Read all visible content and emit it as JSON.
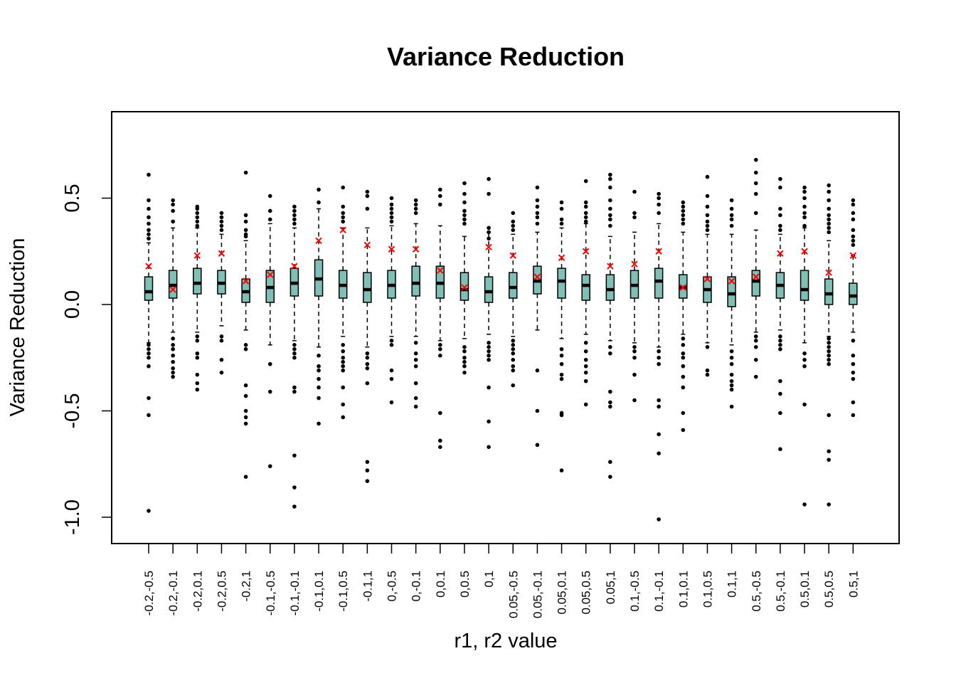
{
  "chart_data": {
    "type": "box",
    "title": "Variance Reduction",
    "xlabel": "r1, r2 value",
    "ylabel": "Variance Reduction",
    "ylim": [
      -1.12,
      0.92
    ],
    "yticks": [
      -1.0,
      -0.5,
      0.0,
      0.5
    ],
    "ytick_labels": [
      "-1.0",
      "-0.5",
      "0.0",
      "0.5"
    ],
    "box_color": "#7fbfb5",
    "mean_marker_color": "#ff0000",
    "grid": false,
    "categories": [
      "-0.2,-0.5",
      "-0.2,-0.1",
      "-0.2,0.1",
      "-0.2,0.5",
      "-0.2,1",
      "-0.1,-0.5",
      "-0.1,-0.1",
      "-0.1,0.1",
      "-0.1,0.5",
      "-0.1,1",
      "0,-0.5",
      "0,-0.1",
      "0,0.1",
      "0,0.5",
      "0,1",
      "0.05,-0.5",
      "0.05,-0.1",
      "0.05,0.1",
      "0.05,0.5",
      "0.05,1",
      "0.1,-0.5",
      "0.1,-0.1",
      "0.1,0.1",
      "0.1,0.5",
      "0.1,1",
      "0.5,-0.5",
      "0.5,-0.1",
      "0.5,0.1",
      "0.5,0.5",
      "0.5,1"
    ],
    "boxes": [
      {
        "median": 0.06,
        "q1": 0.02,
        "q3": 0.13,
        "wlow": -0.18,
        "whigh": 0.29,
        "mean": 0.18,
        "outliers": [
          0.61,
          0.49,
          0.45,
          0.41,
          0.38,
          0.35,
          0.33,
          0.31,
          -0.19,
          -0.21,
          -0.23,
          -0.25,
          -0.29,
          -0.44,
          -0.52,
          -0.97
        ]
      },
      {
        "median": 0.09,
        "q1": 0.03,
        "q3": 0.16,
        "wlow": -0.13,
        "whigh": 0.36,
        "mean": 0.07,
        "outliers": [
          0.49,
          0.47,
          0.44,
          0.39,
          -0.16,
          -0.19,
          -0.21,
          -0.24,
          -0.27,
          -0.3,
          -0.32,
          -0.34
        ]
      },
      {
        "median": 0.1,
        "q1": 0.05,
        "q3": 0.17,
        "wlow": -0.13,
        "whigh": 0.36,
        "mean": 0.23,
        "outliers": [
          0.46,
          0.45,
          0.43,
          0.41,
          0.39,
          0.37,
          -0.15,
          -0.17,
          -0.23,
          -0.25,
          -0.33,
          -0.37,
          -0.4
        ]
      },
      {
        "median": 0.1,
        "q1": 0.05,
        "q3": 0.16,
        "wlow": -0.1,
        "whigh": 0.33,
        "mean": 0.24,
        "outliers": [
          0.43,
          0.41,
          0.39,
          0.37,
          0.35,
          -0.15,
          -0.17,
          -0.26,
          -0.32
        ]
      },
      {
        "median": 0.06,
        "q1": 0.01,
        "q3": 0.12,
        "wlow": -0.12,
        "whigh": 0.3,
        "mean": 0.11,
        "outliers": [
          0.62,
          0.42,
          0.39,
          0.35,
          0.33,
          0.32,
          -0.19,
          -0.21,
          -0.38,
          -0.43,
          -0.5,
          -0.53,
          -0.56,
          -0.81
        ]
      },
      {
        "median": 0.08,
        "q1": 0.01,
        "q3": 0.16,
        "wlow": -0.19,
        "whigh": 0.38,
        "mean": 0.14,
        "outliers": [
          0.51,
          0.44,
          0.4,
          -0.28,
          -0.41,
          -0.76
        ]
      },
      {
        "median": 0.1,
        "q1": 0.04,
        "q3": 0.17,
        "wlow": -0.17,
        "whigh": 0.36,
        "mean": 0.18,
        "outliers": [
          0.46,
          0.44,
          0.42,
          0.4,
          0.38,
          -0.19,
          -0.21,
          -0.23,
          -0.25,
          -0.39,
          -0.41,
          -0.71,
          -0.86,
          -0.95
        ]
      },
      {
        "median": 0.12,
        "q1": 0.04,
        "q3": 0.21,
        "wlow": -0.2,
        "whigh": 0.45,
        "mean": 0.3,
        "outliers": [
          0.54,
          0.48,
          -0.24,
          -0.29,
          -0.31,
          -0.35,
          -0.39,
          -0.44,
          -0.56
        ]
      },
      {
        "median": 0.09,
        "q1": 0.03,
        "q3": 0.16,
        "wlow": -0.15,
        "whigh": 0.36,
        "mean": 0.35,
        "outliers": [
          0.55,
          0.46,
          0.43,
          0.41,
          0.39,
          -0.19,
          -0.22,
          -0.25,
          -0.27,
          -0.29,
          -0.31,
          -0.39,
          -0.47,
          -0.53
        ]
      },
      {
        "median": 0.07,
        "q1": 0.01,
        "q3": 0.15,
        "wlow": -0.2,
        "whigh": 0.36,
        "mean": 0.28,
        "outliers": [
          0.53,
          0.51,
          0.45,
          -0.23,
          -0.25,
          -0.28,
          -0.3,
          -0.37,
          -0.74,
          -0.78,
          -0.83
        ]
      },
      {
        "median": 0.09,
        "q1": 0.03,
        "q3": 0.16,
        "wlow": -0.15,
        "whigh": 0.37,
        "mean": 0.26,
        "outliers": [
          0.5,
          0.47,
          0.45,
          0.43,
          0.41,
          0.39,
          -0.17,
          -0.19,
          -0.31,
          -0.35,
          -0.46
        ]
      },
      {
        "median": 0.1,
        "q1": 0.04,
        "q3": 0.18,
        "wlow": -0.15,
        "whigh": 0.38,
        "mean": 0.26,
        "outliers": [
          0.49,
          0.47,
          0.45,
          0.43,
          -0.18,
          -0.23,
          -0.26,
          -0.29,
          -0.37,
          -0.44,
          -0.48
        ]
      },
      {
        "median": 0.1,
        "q1": 0.03,
        "q3": 0.18,
        "wlow": -0.17,
        "whigh": 0.37,
        "mean": 0.16,
        "outliers": [
          0.54,
          0.51,
          0.47,
          -0.19,
          -0.21,
          -0.24,
          -0.51,
          -0.64,
          -0.67
        ]
      },
      {
        "median": 0.07,
        "q1": 0.02,
        "q3": 0.15,
        "wlow": -0.16,
        "whigh": 0.32,
        "mean": 0.08,
        "outliers": [
          0.57,
          0.52,
          0.48,
          0.44,
          0.42,
          0.4,
          0.38,
          -0.2,
          -0.22,
          -0.25,
          -0.27,
          -0.29,
          -0.32
        ]
      },
      {
        "median": 0.06,
        "q1": 0.01,
        "q3": 0.13,
        "wlow": -0.14,
        "whigh": 0.34,
        "mean": 0.27,
        "outliers": [
          0.59,
          0.52,
          0.36,
          0.34,
          0.31,
          -0.18,
          -0.2,
          -0.22,
          -0.24,
          -0.26,
          -0.39,
          -0.55,
          -0.67
        ]
      },
      {
        "median": 0.08,
        "q1": 0.03,
        "q3": 0.15,
        "wlow": -0.15,
        "whigh": 0.33,
        "mean": 0.23,
        "outliers": [
          0.43,
          0.39,
          0.37,
          0.35,
          -0.17,
          -0.19,
          -0.21,
          -0.23,
          -0.26,
          -0.29,
          -0.31,
          -0.38
        ]
      },
      {
        "median": 0.11,
        "q1": 0.05,
        "q3": 0.18,
        "wlow": -0.12,
        "whigh": 0.34,
        "mean": 0.13,
        "outliers": [
          0.55,
          0.49,
          0.46,
          0.43,
          0.41,
          0.38,
          -0.31,
          -0.5,
          -0.66
        ]
      },
      {
        "median": 0.11,
        "q1": 0.03,
        "q3": 0.17,
        "wlow": -0.16,
        "whigh": 0.36,
        "mean": 0.22,
        "outliers": [
          0.48,
          0.45,
          0.4,
          0.38,
          -0.21,
          -0.24,
          -0.28,
          -0.33,
          -0.35,
          -0.51,
          -0.52,
          -0.78
        ]
      },
      {
        "median": 0.09,
        "q1": 0.02,
        "q3": 0.14,
        "wlow": -0.14,
        "whigh": 0.38,
        "mean": 0.25,
        "outliers": [
          0.58,
          0.48,
          0.46,
          0.43,
          0.41,
          0.39,
          -0.18,
          -0.22,
          -0.26,
          -0.29,
          -0.32,
          -0.36,
          -0.47
        ]
      },
      {
        "median": 0.07,
        "q1": 0.02,
        "q3": 0.14,
        "wlow": -0.17,
        "whigh": 0.32,
        "mean": 0.18,
        "outliers": [
          0.61,
          0.59,
          0.55,
          0.49,
          0.45,
          0.42,
          0.4,
          0.37,
          -0.2,
          -0.23,
          -0.41,
          -0.46,
          -0.48,
          -0.74,
          -0.81
        ]
      },
      {
        "median": 0.09,
        "q1": 0.03,
        "q3": 0.16,
        "wlow": -0.18,
        "whigh": 0.34,
        "mean": 0.19,
        "outliers": [
          0.53,
          0.43,
          0.41,
          -0.2,
          -0.22,
          -0.25,
          -0.33,
          -0.45
        ]
      },
      {
        "median": 0.11,
        "q1": 0.03,
        "q3": 0.17,
        "wlow": -0.2,
        "whigh": 0.38,
        "mean": 0.25,
        "outliers": [
          0.52,
          0.5,
          0.47,
          0.43,
          -0.22,
          -0.25,
          -0.28,
          -0.45,
          -0.48,
          -0.61,
          -0.7,
          -1.01
        ]
      },
      {
        "median": 0.08,
        "q1": 0.03,
        "q3": 0.14,
        "wlow": -0.14,
        "whigh": 0.34,
        "mean": 0.08,
        "outliers": [
          0.48,
          0.46,
          0.44,
          0.42,
          0.4,
          0.38,
          -0.16,
          -0.19,
          -0.23,
          -0.25,
          -0.29,
          -0.34,
          -0.39,
          -0.51,
          -0.59
        ]
      },
      {
        "median": 0.07,
        "q1": 0.01,
        "q3": 0.13,
        "wlow": -0.18,
        "whigh": 0.33,
        "mean": 0.12,
        "outliers": [
          0.6,
          0.51,
          0.46,
          0.42,
          0.39,
          0.37,
          0.35,
          -0.2,
          -0.31,
          -0.33
        ]
      },
      {
        "median": 0.05,
        "q1": -0.01,
        "q3": 0.13,
        "wlow": -0.19,
        "whigh": 0.33,
        "mean": 0.11,
        "outliers": [
          0.49,
          0.45,
          0.42,
          0.4,
          0.37,
          -0.22,
          -0.25,
          -0.28,
          -0.33,
          -0.36,
          -0.38,
          -0.4,
          -0.48
        ]
      },
      {
        "median": 0.11,
        "q1": 0.04,
        "q3": 0.16,
        "wlow": -0.13,
        "whigh": 0.35,
        "mean": 0.13,
        "outliers": [
          0.68,
          0.62,
          0.57,
          0.52,
          0.43,
          -0.15,
          -0.17,
          -0.2,
          -0.26,
          -0.34
        ]
      },
      {
        "median": 0.09,
        "q1": 0.03,
        "q3": 0.15,
        "wlow": -0.12,
        "whigh": 0.33,
        "mean": 0.24,
        "outliers": [
          0.59,
          0.55,
          0.45,
          0.42,
          0.37,
          0.35,
          -0.15,
          -0.17,
          -0.19,
          -0.21,
          -0.36,
          -0.42,
          -0.51,
          -0.68
        ]
      },
      {
        "median": 0.07,
        "q1": 0.02,
        "q3": 0.16,
        "wlow": -0.18,
        "whigh": 0.36,
        "mean": 0.25,
        "outliers": [
          0.55,
          0.53,
          0.5,
          0.46,
          0.43,
          0.41,
          0.37,
          -0.23,
          -0.26,
          -0.29,
          -0.47,
          -0.94
        ]
      },
      {
        "median": 0.05,
        "q1": 0.0,
        "q3": 0.12,
        "wlow": -0.15,
        "whigh": 0.3,
        "mean": 0.15,
        "outliers": [
          0.56,
          0.53,
          0.49,
          0.45,
          0.42,
          0.4,
          0.38,
          0.36,
          0.34,
          -0.16,
          -0.18,
          -0.2,
          -0.22,
          -0.24,
          -0.26,
          -0.28,
          -0.52,
          -0.69,
          -0.73,
          -0.94
        ]
      },
      {
        "median": 0.04,
        "q1": 0.0,
        "q3": 0.1,
        "wlow": -0.13,
        "whigh": 0.23,
        "mean": 0.23,
        "outliers": [
          0.49,
          0.47,
          0.43,
          0.4,
          0.35,
          0.32,
          0.3,
          0.28,
          -0.17,
          -0.24,
          -0.28,
          -0.32,
          -0.35,
          -0.46,
          -0.52
        ]
      }
    ]
  }
}
